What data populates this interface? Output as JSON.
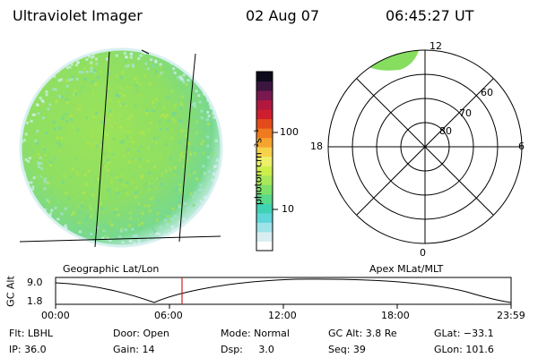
{
  "header": {
    "instrument": "Ultraviolet Imager",
    "date": "02 Aug 07",
    "time": "06:45:27 UT"
  },
  "colorbar": {
    "unit_label": "photon cm⁻²s⁻¹",
    "ticks": [
      "100",
      "10"
    ],
    "colors": [
      "#ffffff",
      "#d9eef2",
      "#9fe3ea",
      "#5fd6d8",
      "#3fd3b4",
      "#59d98a",
      "#7fe06a",
      "#a8e85a",
      "#cdef4c",
      "#eef06a",
      "#f6d24a",
      "#f5a42f",
      "#f07a1f",
      "#e34b1a",
      "#cf1f2e",
      "#b0183f",
      "#7a1850",
      "#3b1540",
      "#0d0a1c"
    ]
  },
  "left_map": {
    "label": "Geographic Lat/Lon",
    "colors": {
      "base": "#8fdf63",
      "edge": "#cdeeee",
      "speckle": "#b7e64a"
    }
  },
  "right_polar": {
    "label": "Apex MLat/MLT",
    "mlt_labels": {
      "top": "12",
      "left": "18",
      "right": "6",
      "bottom": "0"
    },
    "lat_labels": [
      "60",
      "70",
      "80"
    ],
    "aurora_color": "#86dd5e"
  },
  "altitude_plot": {
    "ylabel": "GC Alt",
    "y_ticks": [
      "9.0",
      "1.8"
    ],
    "x_ticks": [
      "00:00",
      "06:00",
      "12:00",
      "18:00",
      "23:59"
    ],
    "marker_color": "#cc2222"
  },
  "status": {
    "flt": "Flt: LBHL",
    "ip": "IP: 36.0",
    "door": "Door: Open",
    "gain": "Gain: 14",
    "mode": "Mode: Normal",
    "dsp": "Dsp:     3.0",
    "gc_alt": "GC Alt: 3.8 Re",
    "seq": "Seq: 39",
    "glat": "GLat: −33.1",
    "glon": "GLon: 101.6"
  }
}
